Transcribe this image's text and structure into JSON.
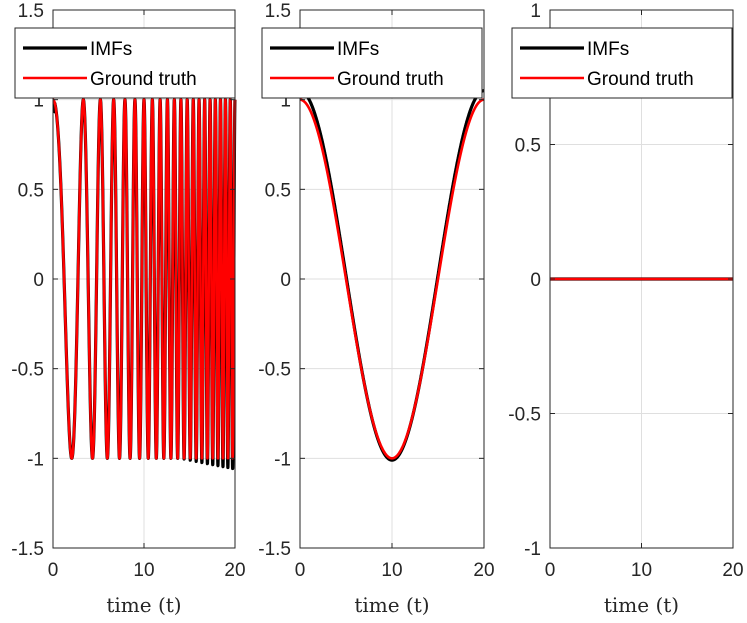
{
  "colors": {
    "imfs": "#000000",
    "ground_truth": "#ff0000",
    "axes": "#262626",
    "grid": "#dfdfdf"
  },
  "chart_data": [
    {
      "type": "line",
      "title": "",
      "xlabel": "time (t)",
      "ylabel": "",
      "xlim": [
        0,
        20
      ],
      "ylim": [
        -1.5,
        1.5
      ],
      "xticks": [
        0,
        10,
        20
      ],
      "yticks": [
        -1.5,
        -1,
        -0.5,
        0,
        0.5,
        1,
        1.5
      ],
      "xtick_labels": [
        "0",
        "10",
        "20"
      ],
      "ytick_labels": [
        "-1.5",
        "-1",
        "-0.5",
        "0",
        "0.5",
        "1",
        "1.5"
      ],
      "grid": true,
      "legend": {
        "position": "top",
        "entries": [
          "IMFs",
          "Ground truth"
        ]
      },
      "series": [
        {
          "name": "IMFs",
          "function": "chirp",
          "description_values": {
            "y_at_0": 0.95,
            "min": -1.06,
            "max": 1.0
          }
        },
        {
          "name": "Ground truth",
          "function": "chirp",
          "description_values": {
            "y_at_0": 1.0,
            "min": -1.0,
            "max": 1.0
          }
        }
      ]
    },
    {
      "type": "line",
      "title": "",
      "xlabel": "time (t)",
      "ylabel": "",
      "xlim": [
        0,
        20
      ],
      "ylim": [
        -1.5,
        1.5
      ],
      "xticks": [
        0,
        10,
        20
      ],
      "yticks": [
        -1.5,
        -1,
        -0.5,
        0,
        0.5,
        1,
        1.5
      ],
      "xtick_labels": [
        "0",
        "10",
        "20"
      ],
      "ytick_labels": [
        "-1.5",
        "-1",
        "-0.5",
        "0",
        "0.5",
        "1",
        "1.5"
      ],
      "grid": true,
      "legend": {
        "position": "top",
        "entries": [
          "IMFs",
          "Ground truth"
        ]
      },
      "series": [
        {
          "name": "IMFs",
          "function": "cosine",
          "description_values": {
            "y_at_0": 1.05,
            "min": -1.01,
            "y_at_20": 1.05
          }
        },
        {
          "name": "Ground truth",
          "function": "cosine",
          "description_values": {
            "y_at_0": 1.0,
            "min": -1.0,
            "y_at_20": 1.0
          }
        }
      ]
    },
    {
      "type": "line",
      "title": "",
      "xlabel": "time (t)",
      "ylabel": "",
      "xlim": [
        0,
        20
      ],
      "ylim": [
        -1,
        1
      ],
      "xticks": [
        0,
        10,
        20
      ],
      "yticks": [
        -1,
        -0.5,
        0,
        0.5,
        1
      ],
      "xtick_labels": [
        "0",
        "10",
        "20"
      ],
      "ytick_labels": [
        "-1",
        "-0.5",
        "0",
        "0.5",
        "1"
      ],
      "grid": true,
      "legend": {
        "position": "top",
        "entries": [
          "IMFs",
          "Ground truth"
        ]
      },
      "series": [
        {
          "name": "IMFs",
          "x": [
            0,
            20
          ],
          "y": [
            0,
            0
          ]
        },
        {
          "name": "Ground truth",
          "x": [
            0,
            20
          ],
          "y": [
            0,
            0
          ]
        }
      ]
    }
  ]
}
